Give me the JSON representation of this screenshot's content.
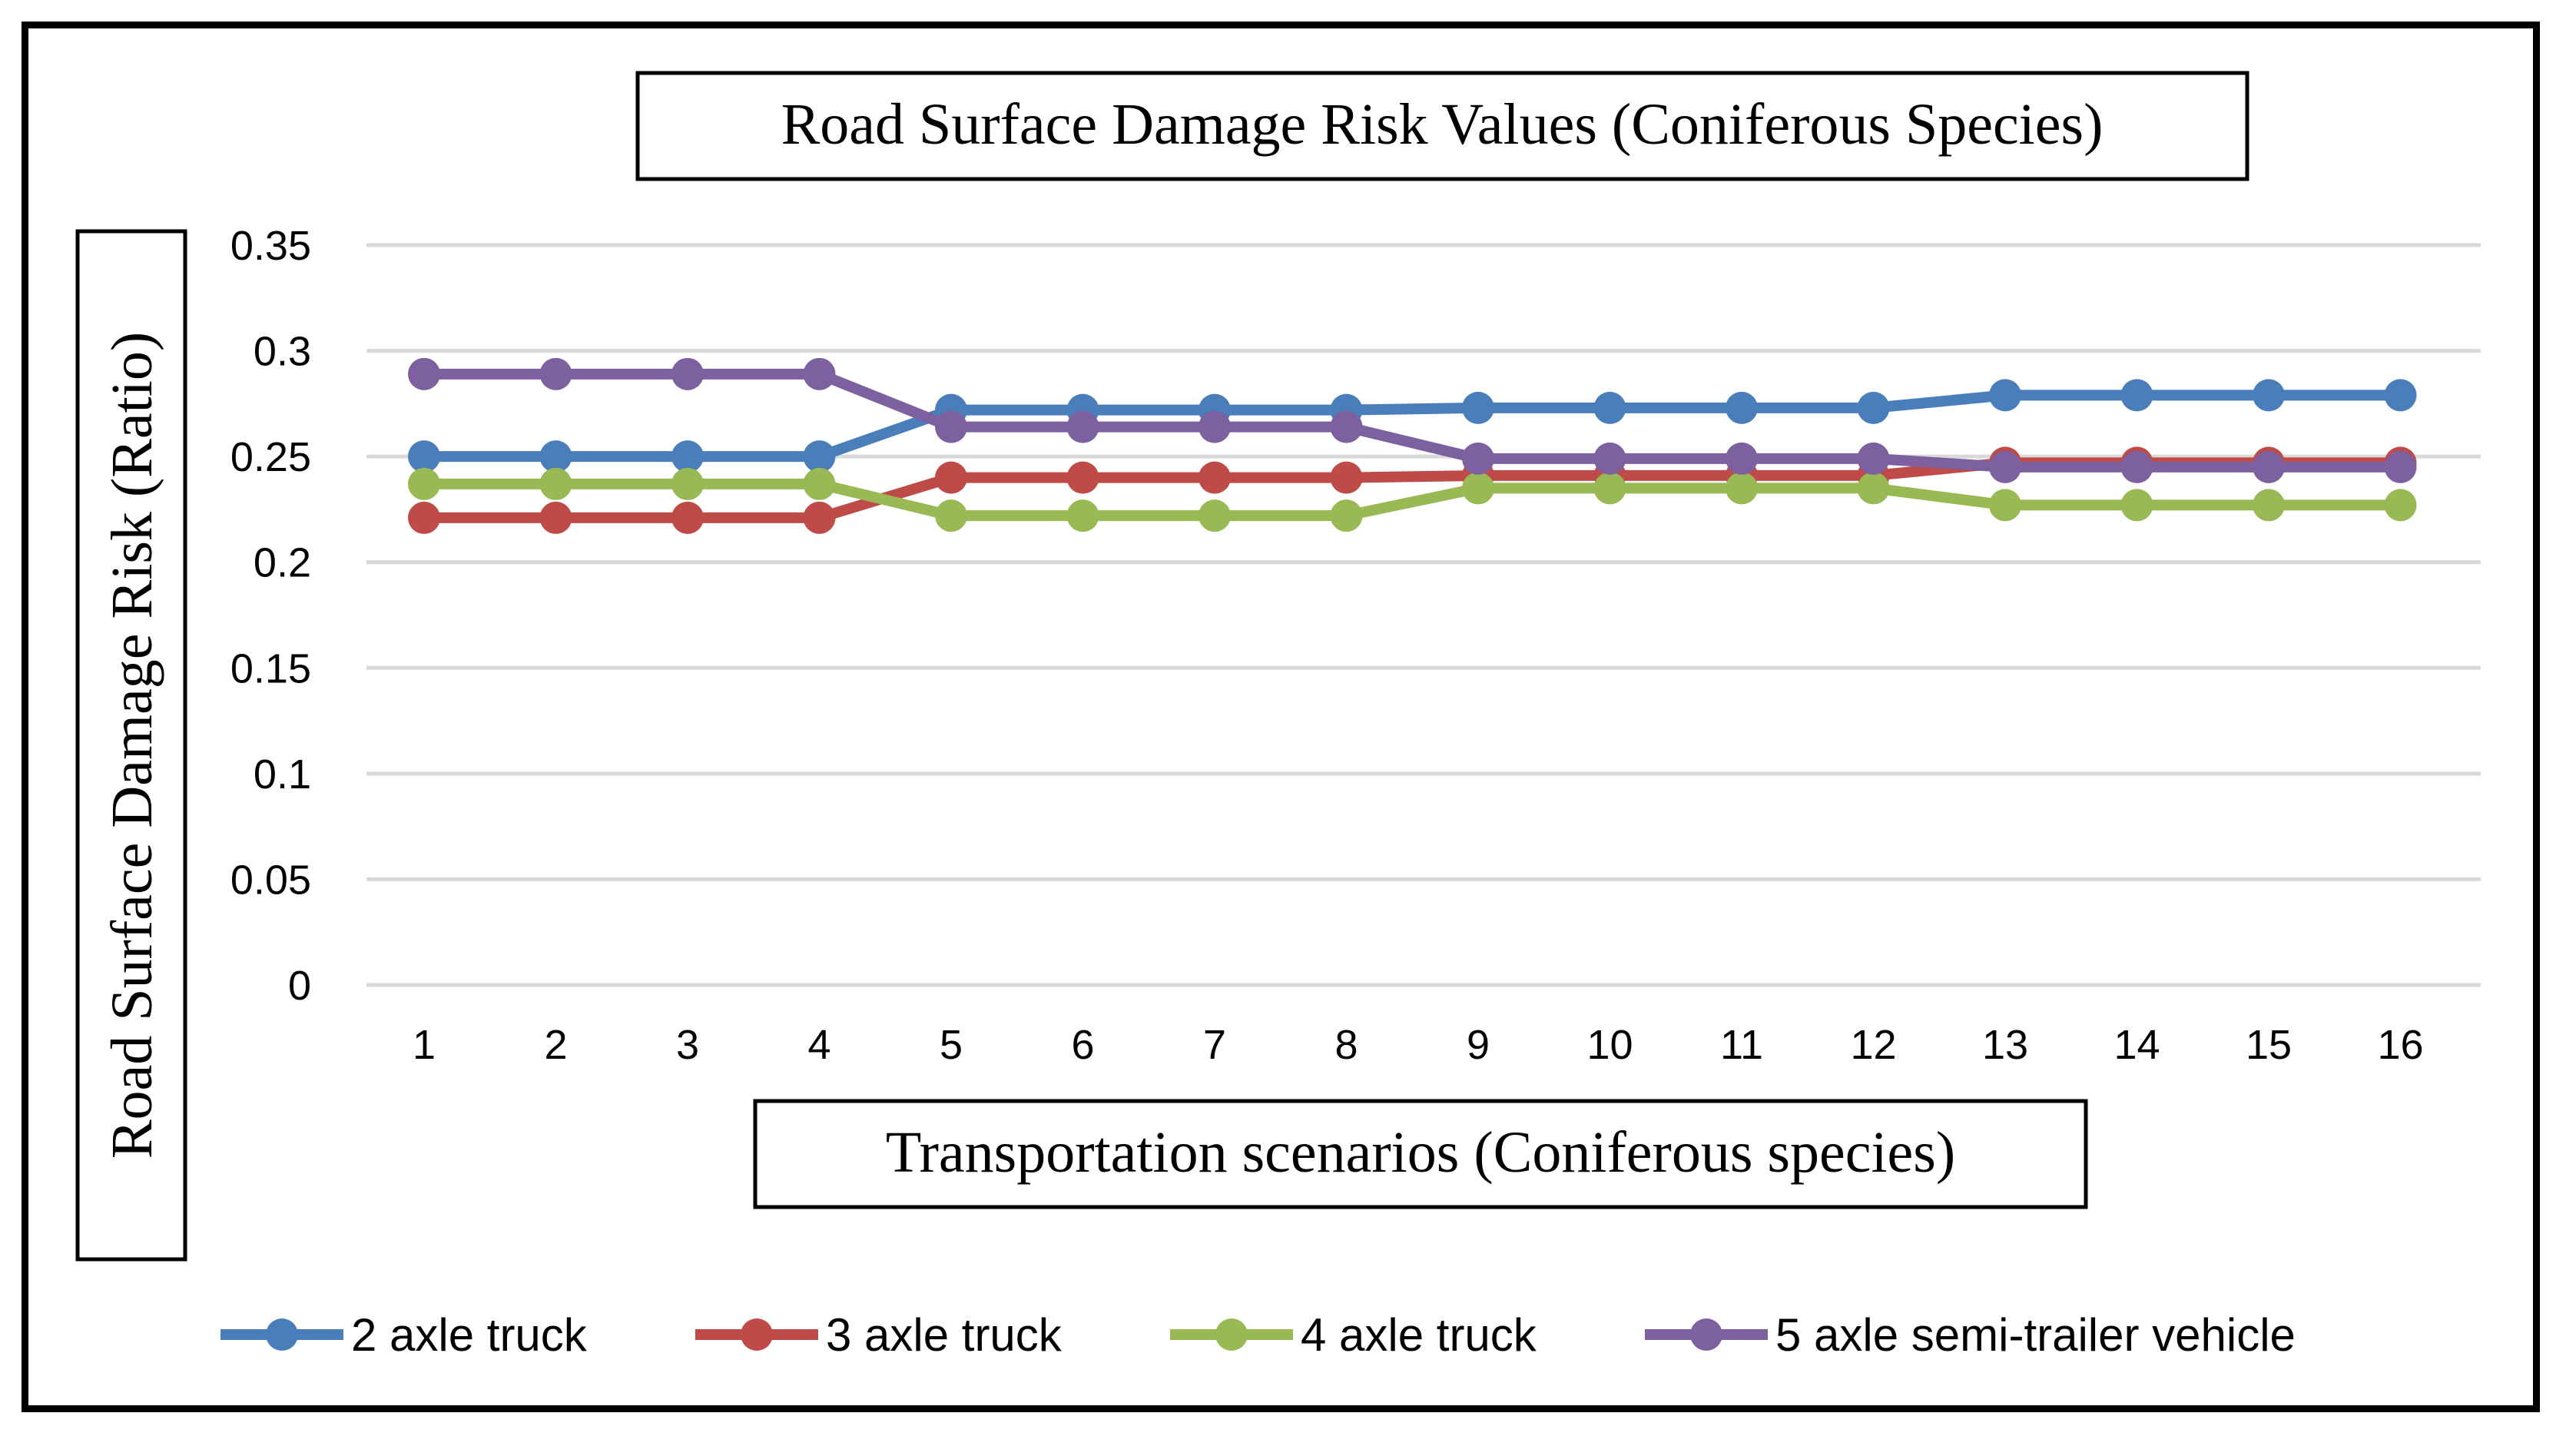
{
  "chart_data": {
    "type": "line",
    "title": "Road Surface Damage Risk Values (Coniferous Species)",
    "xlabel": "Transportation scenarios (Coniferous species)",
    "ylabel": "Road Surface Damage Risk (Ratio)",
    "ylim": [
      0,
      0.35
    ],
    "yticks": [
      "0",
      "0.05",
      "0.1",
      "0.15",
      "0.2",
      "0.25",
      "0.3",
      "0.35"
    ],
    "categories": [
      "1",
      "2",
      "3",
      "4",
      "5",
      "6",
      "7",
      "8",
      "9",
      "10",
      "11",
      "12",
      "13",
      "14",
      "15",
      "16"
    ],
    "grid": true,
    "legend_position": "bottom",
    "series": [
      {
        "name": "2 axle truck",
        "color": "#4a7ebb",
        "values": [
          0.25,
          0.25,
          0.25,
          0.25,
          0.272,
          0.272,
          0.272,
          0.272,
          0.273,
          0.273,
          0.273,
          0.273,
          0.279,
          0.279,
          0.279,
          0.279
        ]
      },
      {
        "name": "3 axle truck",
        "color": "#be4b48",
        "values": [
          0.221,
          0.221,
          0.221,
          0.221,
          0.24,
          0.24,
          0.24,
          0.24,
          0.241,
          0.241,
          0.241,
          0.241,
          0.247,
          0.247,
          0.247,
          0.247
        ]
      },
      {
        "name": "4 axle truck",
        "color": "#98b954",
        "values": [
          0.237,
          0.237,
          0.237,
          0.237,
          0.222,
          0.222,
          0.222,
          0.222,
          0.235,
          0.235,
          0.235,
          0.235,
          0.227,
          0.227,
          0.227,
          0.227
        ]
      },
      {
        "name": "5 axle semi-trailer vehicle",
        "color": "#7d60a0",
        "values": [
          0.289,
          0.289,
          0.289,
          0.289,
          0.264,
          0.264,
          0.264,
          0.264,
          0.249,
          0.249,
          0.249,
          0.249,
          0.245,
          0.245,
          0.245,
          0.245
        ]
      }
    ]
  }
}
